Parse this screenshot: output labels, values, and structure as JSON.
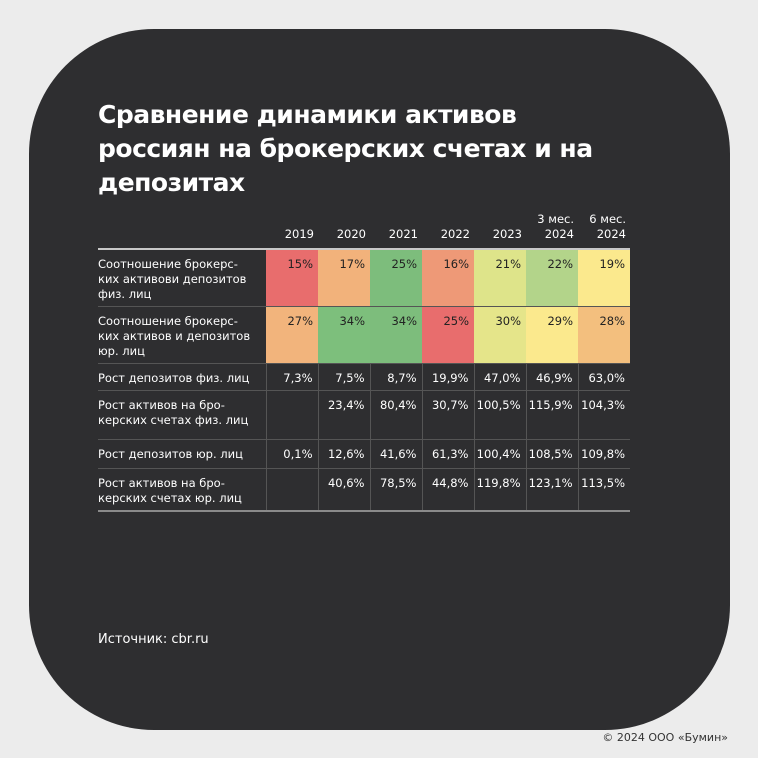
{
  "title": "Сравнение динамики активов россиян на брокерских счетах и на депозитах",
  "chart_data": {
    "type": "table",
    "columns": [
      "2019",
      "2020",
      "2021",
      "2022",
      "2023",
      "3 мес. 2024",
      "6 мес. 2024"
    ],
    "rows": [
      {
        "label": "Соотношение брокерс-ких активови депозитов физ. лиц",
        "values": [
          "15%",
          "17%",
          "25%",
          "16%",
          "21%",
          "22%",
          "19%"
        ],
        "colors": [
          "#e86d6d",
          "#f2b27b",
          "#7dbd7c",
          "#ee9977",
          "#dee48a",
          "#b3d48a",
          "#fbe98d"
        ]
      },
      {
        "label": "Соотношение брокерс-ких активов и депозитов юр. лиц",
        "values": [
          "27%",
          "34%",
          "34%",
          "25%",
          "30%",
          "29%",
          "28%"
        ],
        "colors": [
          "#f2b47c",
          "#7dbf7c",
          "#7dbd7c",
          "#e86d6d",
          "#e5e58a",
          "#fbe98d",
          "#f3bf7e"
        ]
      },
      {
        "label": "Рост депозитов физ. лиц",
        "values": [
          "7,3%",
          "7,5%",
          "8,7%",
          "19,9%",
          "47,0%",
          "46,9%",
          "63,0%"
        ]
      },
      {
        "label": "Рост активов на бро-керских счетах физ. лиц",
        "values": [
          "",
          "23,4%",
          "80,4%",
          "30,7%",
          "100,5%",
          "115,9%",
          "104,3%"
        ]
      },
      {
        "label": "Рост депозитов юр. лиц",
        "values": [
          "0,1%",
          "12,6%",
          "41,6%",
          "61,3%",
          "100,4%",
          "108,5%",
          "109,8%"
        ]
      },
      {
        "label": "Рост активов на бро-керских счетах юр. лиц",
        "values": [
          "",
          "40,6%",
          "78,5%",
          "44,8%",
          "119,8%",
          "123,1%",
          "113,5%"
        ]
      }
    ]
  },
  "source": "Источник: cbr.ru",
  "copyright": "© 2024 ООО «Бумин»"
}
